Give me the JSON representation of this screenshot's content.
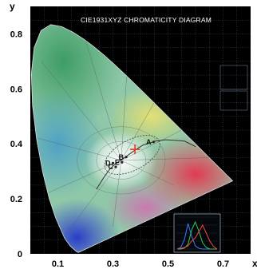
{
  "chart_data": {
    "type": "scatter",
    "title": "CIE1931XYZ CHROMATICITY DIAGRAM",
    "xlabel": "x",
    "ylabel": "y",
    "xlim": [
      0.0,
      0.8
    ],
    "ylim": [
      0.0,
      0.9
    ],
    "x_ticks": [
      "0.1",
      "0.3",
      "0.5",
      "0.7"
    ],
    "x_tick_values": [
      0.1,
      0.3,
      0.5,
      0.7
    ],
    "y_ticks": [
      "0",
      "0.2",
      "0.4",
      "0.6",
      "0.8"
    ],
    "y_tick_values": [
      0.0,
      0.2,
      0.4,
      0.6,
      0.8
    ],
    "grid": true,
    "background_color": "#000000",
    "spectral_locus": [
      [
        0.1741,
        0.005
      ],
      [
        0.1738,
        0.0049
      ],
      [
        0.1666,
        0.0089
      ],
      [
        0.144,
        0.0297
      ],
      [
        0.1241,
        0.0578
      ],
      [
        0.0913,
        0.1327
      ],
      [
        0.0687,
        0.2007
      ],
      [
        0.0454,
        0.295
      ],
      [
        0.0235,
        0.4127
      ],
      [
        0.0082,
        0.5384
      ],
      [
        0.0039,
        0.6548
      ],
      [
        0.0139,
        0.7502
      ],
      [
        0.0389,
        0.812
      ],
      [
        0.0743,
        0.8338
      ],
      [
        0.1142,
        0.8262
      ],
      [
        0.1547,
        0.8059
      ],
      [
        0.1929,
        0.7816
      ],
      [
        0.2296,
        0.7543
      ],
      [
        0.2658,
        0.7243
      ],
      [
        0.3016,
        0.6923
      ],
      [
        0.3373,
        0.6589
      ],
      [
        0.3731,
        0.6245
      ],
      [
        0.4087,
        0.5896
      ],
      [
        0.4441,
        0.5547
      ],
      [
        0.4788,
        0.5202
      ],
      [
        0.5125,
        0.4866
      ],
      [
        0.5448,
        0.4544
      ],
      [
        0.5752,
        0.4242
      ],
      [
        0.6029,
        0.3965
      ],
      [
        0.627,
        0.3725
      ],
      [
        0.6482,
        0.3514
      ],
      [
        0.6658,
        0.334
      ],
      [
        0.6801,
        0.3197
      ],
      [
        0.6915,
        0.3083
      ],
      [
        0.7006,
        0.2993
      ],
      [
        0.7079,
        0.292
      ],
      [
        0.714,
        0.2859
      ],
      [
        0.719,
        0.2809
      ],
      [
        0.723,
        0.277
      ],
      [
        0.726,
        0.274
      ],
      [
        0.7347,
        0.2653
      ]
    ],
    "planckian_locus": [
      [
        0.6,
        0.39
      ],
      [
        0.56,
        0.41
      ],
      [
        0.527,
        0.413
      ],
      [
        0.49,
        0.415
      ],
      [
        0.454,
        0.41
      ],
      [
        0.437,
        0.404
      ],
      [
        0.41,
        0.396
      ],
      [
        0.38,
        0.377
      ],
      [
        0.345,
        0.352
      ],
      [
        0.313,
        0.33
      ],
      [
        0.29,
        0.31
      ],
      [
        0.265,
        0.275
      ],
      [
        0.24,
        0.235
      ]
    ],
    "points": [
      {
        "label": "A",
        "x": 0.448,
        "y": 0.407
      },
      {
        "label": "B",
        "x": 0.348,
        "y": 0.352
      },
      {
        "label": "C",
        "x": 0.31,
        "y": 0.316
      },
      {
        "label": "D",
        "x": 0.3,
        "y": 0.33
      },
      {
        "label": "E",
        "x": 0.333,
        "y": 0.333
      }
    ],
    "white_point": {
      "x": 0.38,
      "y": 0.38
    },
    "inset": {
      "type": "line",
      "series": [
        {
          "color": "#3a7cff",
          "values": [
            0,
            5,
            30,
            80,
            40,
            10,
            2,
            0,
            0,
            0,
            0,
            0
          ]
        },
        {
          "color": "#33cc55",
          "values": [
            0,
            0,
            3,
            15,
            60,
            85,
            55,
            20,
            5,
            0,
            0,
            0
          ]
        },
        {
          "color": "#ff4433",
          "values": [
            0,
            2,
            5,
            10,
            25,
            35,
            55,
            75,
            50,
            25,
            8,
            0
          ]
        }
      ]
    }
  }
}
